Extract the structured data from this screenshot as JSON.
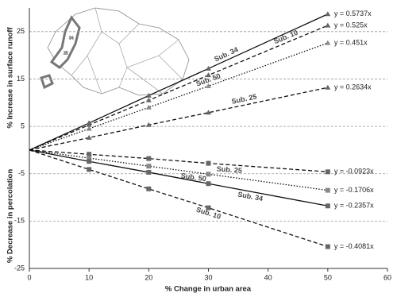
{
  "chart_data": {
    "type": "line",
    "x_label": "% Change in urban area",
    "y_label_upper": "% Increase in surface runoff",
    "y_label_lower": "% Decrease in percolation",
    "inset_labels": [
      "34",
      "25"
    ],
    "x": [
      0,
      10,
      20,
      30,
      50
    ],
    "xlim": [
      0,
      60
    ],
    "xticks": [
      0,
      10,
      20,
      30,
      40,
      50,
      60
    ],
    "ylim": [
      -25,
      30
    ],
    "yticks": [
      -25,
      -15,
      -5,
      5,
      15,
      25
    ],
    "grid": true,
    "series": [
      {
        "name": "Sub. 34",
        "equation": "y = 0.5737x",
        "color": "#111111",
        "marker_color": "#666666",
        "dash": "solid",
        "marker": "triangle",
        "values": [
          0,
          5.7,
          11.5,
          17.2,
          28.7
        ]
      },
      {
        "name": "Sub. 10",
        "equation": "y = 0.525x",
        "color": "#111111",
        "marker_color": "#666666",
        "dash": "dashed",
        "marker": "triangle",
        "values": [
          0,
          5.3,
          10.5,
          15.8,
          26.3
        ]
      },
      {
        "name": "Sub. 50",
        "equation": "y = 0.451x",
        "color": "#111111",
        "marker_color": "#888888",
        "dash": "dotted",
        "marker": "triangle",
        "values": [
          0,
          4.5,
          9.0,
          13.5,
          22.6
        ]
      },
      {
        "name": "Sub. 25",
        "equation": "y = 0.2634x",
        "color": "#111111",
        "marker_color": "#666666",
        "dash": "dashed",
        "marker": "triangle",
        "values": [
          0,
          2.6,
          5.3,
          7.9,
          13.2
        ]
      },
      {
        "name": "Sub. 25",
        "equation": "y = -0.0923x",
        "color": "#111111",
        "marker_color": "#666666",
        "dash": "dashed",
        "marker": "square",
        "values": [
          0,
          -0.9,
          -1.8,
          -2.8,
          -4.6
        ]
      },
      {
        "name": "Sub. 50",
        "equation": "y = -0.1706x",
        "color": "#111111",
        "marker_color": "#888888",
        "dash": "dotted",
        "marker": "square",
        "values": [
          0,
          -1.7,
          -3.4,
          -5.1,
          -8.5
        ]
      },
      {
        "name": "Sub. 34",
        "equation": "y = -0.2357x",
        "color": "#111111",
        "marker_color": "#666666",
        "dash": "solid",
        "marker": "square",
        "values": [
          0,
          -2.4,
          -4.7,
          -7.1,
          -11.8
        ]
      },
      {
        "name": "Sub. 10",
        "equation": "y = -0.4081x",
        "color": "#111111",
        "marker_color": "#666666",
        "dash": "dashed",
        "marker": "square",
        "values": [
          0,
          -4.1,
          -8.2,
          -12.2,
          -20.4
        ]
      }
    ]
  }
}
